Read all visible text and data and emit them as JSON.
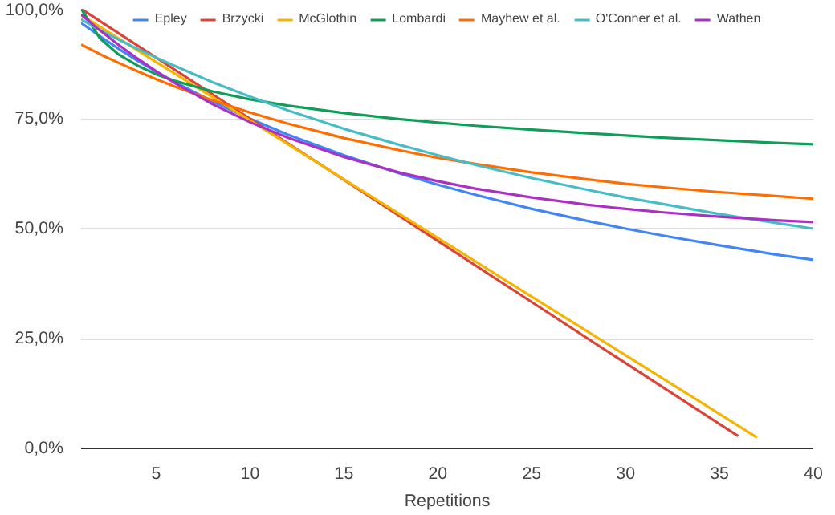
{
  "chart_data": {
    "type": "line",
    "xlabel": "Repetitions",
    "xlim": [
      1,
      40
    ],
    "xticks": [
      5,
      10,
      15,
      20,
      25,
      30,
      35,
      40
    ],
    "ylim": [
      0,
      100
    ],
    "yticks": [
      {
        "value": 0,
        "label": "0,0%"
      },
      {
        "value": 25,
        "label": "25,0%"
      },
      {
        "value": 50,
        "label": "50,0%"
      },
      {
        "value": 75,
        "label": "75,0%"
      },
      {
        "value": 100,
        "label": "100,0%"
      }
    ],
    "grid": "y",
    "legend": "top",
    "marker": "none",
    "line_style": "solid",
    "series": [
      {
        "name": "Epley",
        "color": "#4285f4",
        "x": [
          1,
          2,
          3,
          4,
          5,
          6,
          8,
          10,
          12,
          15,
          18,
          20,
          22,
          25,
          28,
          30,
          32,
          35,
          38,
          40
        ],
        "values": [
          96.8,
          93.8,
          90.9,
          88.2,
          85.7,
          83.3,
          78.9,
          75.0,
          71.4,
          66.7,
          62.5,
          60.0,
          57.7,
          54.5,
          51.7,
          50.0,
          48.4,
          46.2,
          44.1,
          42.9
        ]
      },
      {
        "name": "Brzycki",
        "color": "#db4437",
        "x": [
          1,
          5,
          10,
          15,
          20,
          25,
          30,
          36
        ],
        "values": [
          100,
          88.9,
          75.0,
          61.1,
          47.2,
          33.3,
          19.4,
          2.8
        ]
      },
      {
        "name": "McGlothin",
        "color": "#f4b400",
        "x": [
          1,
          5,
          10,
          15,
          20,
          25,
          30,
          37
        ],
        "values": [
          98.6,
          87.9,
          74.6,
          61.2,
          47.9,
          34.5,
          21.2,
          2.5
        ]
      },
      {
        "name": "Lombardi",
        "color": "#0f9d58",
        "x": [
          1,
          2,
          3,
          4,
          5,
          6,
          8,
          10,
          12,
          15,
          18,
          20,
          22,
          25,
          28,
          30,
          32,
          35,
          38,
          40
        ],
        "values": [
          100,
          93.3,
          89.6,
          87.1,
          85.1,
          83.6,
          81.2,
          79.4,
          78.0,
          76.3,
          74.9,
          74.1,
          73.4,
          72.5,
          71.7,
          71.2,
          70.7,
          70.1,
          69.5,
          69.2
        ]
      },
      {
        "name": "Mayhew et al.",
        "color": "#ff6d01",
        "x": [
          1,
          2,
          3,
          4,
          5,
          6,
          8,
          10,
          12,
          15,
          18,
          20,
          22,
          25,
          28,
          30,
          32,
          35,
          38,
          40
        ],
        "values": [
          91.9,
          89.7,
          87.7,
          85.8,
          84.0,
          82.3,
          79.2,
          76.4,
          73.9,
          70.6,
          67.8,
          66.1,
          64.7,
          62.8,
          61.2,
          60.2,
          59.4,
          58.3,
          57.4,
          56.8
        ]
      },
      {
        "name": "O'Conner et al.",
        "color": "#46bdc6",
        "x": [
          1,
          2,
          3,
          4,
          5,
          6,
          8,
          10,
          12,
          15,
          18,
          20,
          22,
          25,
          28,
          30,
          32,
          35,
          38,
          40
        ],
        "values": [
          97.6,
          95.2,
          93.0,
          90.9,
          88.9,
          87.0,
          83.3,
          80.0,
          76.9,
          72.7,
          69.0,
          66.7,
          64.5,
          61.5,
          58.8,
          57.1,
          55.6,
          53.3,
          51.3,
          50.0
        ]
      },
      {
        "name": "Wathen",
        "color": "#ab30c4",
        "x": [
          1,
          2,
          3,
          4,
          5,
          6,
          8,
          10,
          12,
          15,
          18,
          20,
          22,
          25,
          28,
          30,
          32,
          35,
          38,
          40
        ],
        "values": [
          98.7,
          95.1,
          91.8,
          88.7,
          85.8,
          83.1,
          78.3,
          74.2,
          70.7,
          66.3,
          62.7,
          60.8,
          59.1,
          57.1,
          55.4,
          54.5,
          53.7,
          52.7,
          51.9,
          51.5
        ]
      }
    ]
  }
}
